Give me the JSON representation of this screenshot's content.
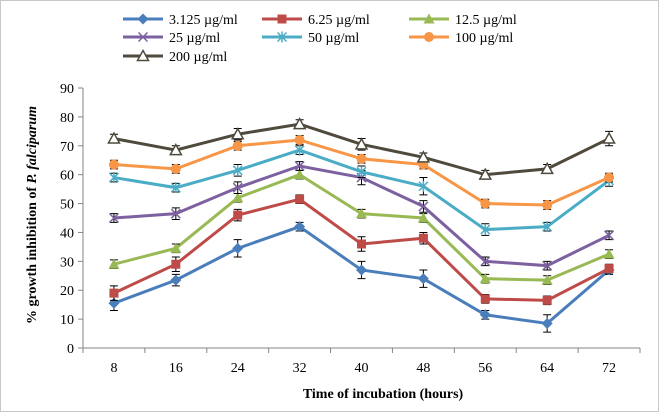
{
  "chart_data": {
    "type": "line",
    "xlabel": "Time of incubation  (hours)",
    "ylabel_prefix": "% growth inhibition  of ",
    "ylabel_italic": "P. falciparum",
    "x": [
      8,
      16,
      24,
      32,
      40,
      48,
      56,
      64,
      72
    ],
    "ylim": [
      0,
      90
    ],
    "yticks": [
      0,
      10,
      20,
      30,
      40,
      50,
      60,
      70,
      80,
      90
    ],
    "grid": false,
    "legend_position": "top",
    "series": [
      {
        "name": "3.125 µg/ml",
        "color": "#4a7ebb",
        "marker": "diamond",
        "values": [
          15.5,
          23.5,
          34.5,
          42,
          27,
          24,
          11.5,
          8.5,
          27
        ],
        "errors": [
          2.5,
          2,
          3,
          1.5,
          3,
          3,
          1.5,
          3,
          1.5
        ]
      },
      {
        "name": "6.25 µg/ml",
        "color": "#be4b48",
        "marker": "square",
        "values": [
          19,
          29,
          46,
          51.5,
          36,
          38,
          17,
          16.5,
          27.5
        ],
        "errors": [
          2.5,
          2.5,
          2,
          1.5,
          2.5,
          2,
          1.5,
          1.5,
          1.5
        ]
      },
      {
        "name": "12.5 µg/ml",
        "color": "#98b954",
        "marker": "triangle",
        "values": [
          29,
          34.5,
          52,
          60,
          46.5,
          45,
          24,
          23.5,
          32.5
        ],
        "errors": [
          1.5,
          1.5,
          1.5,
          1.5,
          1.5,
          1.5,
          1.5,
          1.5,
          1.5
        ]
      },
      {
        "name": "25 µg/ml",
        "color": "#7d60a0",
        "marker": "x",
        "values": [
          45,
          46.5,
          55.5,
          63,
          59,
          49,
          30,
          28.5,
          39
        ],
        "errors": [
          1.5,
          2,
          2,
          1.5,
          2.5,
          2,
          1.5,
          1.5,
          1.5
        ]
      },
      {
        "name": "50 µg/ml",
        "color": "#4bacc6",
        "marker": "star",
        "values": [
          59,
          55.5,
          61.5,
          68.5,
          61,
          56,
          41,
          42,
          58
        ],
        "errors": [
          1.5,
          1.5,
          2,
          1.5,
          2,
          3,
          2,
          1.5,
          2
        ]
      },
      {
        "name": "100 µg/ml",
        "color": "#f79646",
        "marker": "circle",
        "values": [
          63.5,
          62,
          70,
          72,
          65.5,
          63.5,
          50,
          49.5,
          59
        ],
        "errors": [
          1.5,
          1.5,
          1.5,
          1.5,
          1.5,
          1.5,
          1.5,
          1.5,
          1.5
        ]
      },
      {
        "name": "200 µg/ml",
        "color": "#4f4a3c",
        "marker": "open-triangle",
        "values": [
          72.5,
          68.5,
          74,
          77.5,
          70.5,
          66,
          60,
          62,
          72.5
        ],
        "errors": [
          1.5,
          1.5,
          2,
          1.5,
          2,
          1.5,
          1.5,
          1.5,
          2.5
        ]
      }
    ]
  }
}
